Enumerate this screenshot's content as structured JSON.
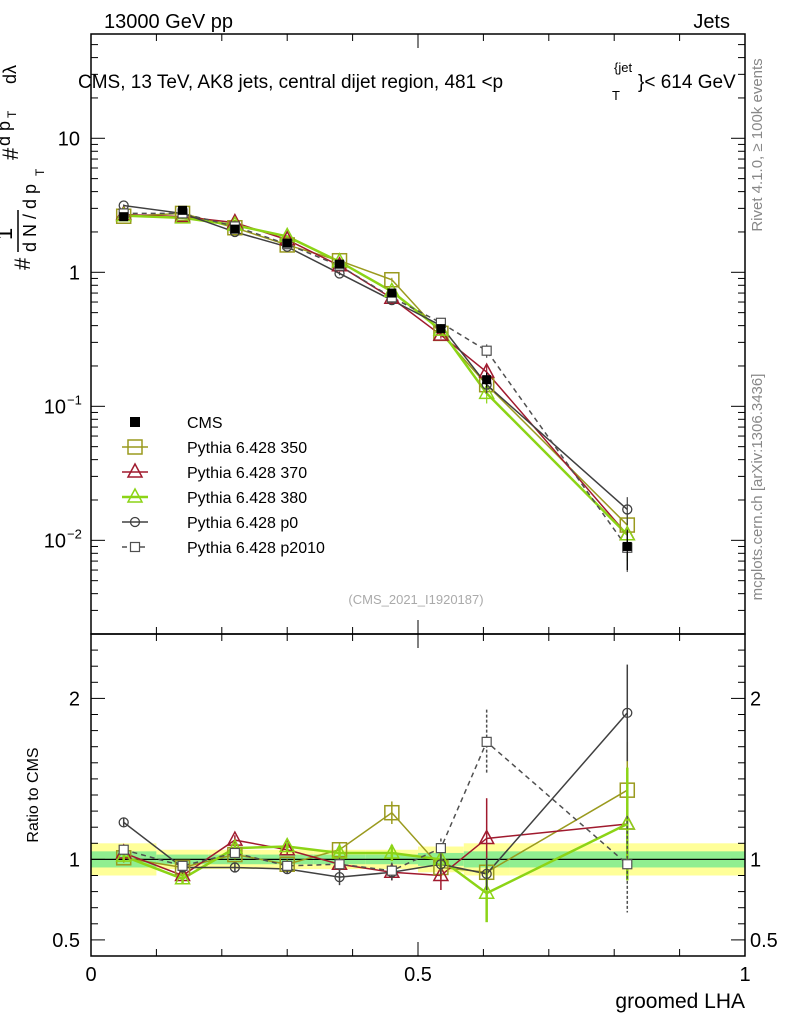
{
  "header": {
    "left": "13000 GeV pp",
    "right": "Jets"
  },
  "side": {
    "rivet": "Rivet 4.1.0, ≥ 100k events",
    "mcplots": "mcplots.cern.ch [arXiv:1306.3436]"
  },
  "chart_data": {
    "type": "line",
    "title": "CMS, 13 TeV, AK8 jets, central dijet region, 481 < p_T^{jet} < 614 GeV",
    "title_main": "CMS, 13 TeV, AK8 jets, central dijet region, 481 <p",
    "title_sub": "T",
    "title_sup": "{jet",
    "title_tail": "}< 614 GeV",
    "watermark": "(CMS_2021_I1920187)",
    "xlabel": "groomed LHA",
    "ylabel_top": "1/N dN/dp_T d²N/dp_T dλ",
    "ylabel_ratio": "Ratio to CMS",
    "xlim": [
      0,
      1
    ],
    "ylim_top": [
      0.002,
      60
    ],
    "ylim_ratio": [
      0.4,
      2.4
    ],
    "yscale_top": "log",
    "x_ticks": [
      {
        "v": 0,
        "label": "0"
      },
      {
        "v": 0.5,
        "label": "0.5"
      },
      {
        "v": 1,
        "label": "1"
      }
    ],
    "y_ticks_top": [
      {
        "v": 0.01,
        "base": "10",
        "exp": "−2"
      },
      {
        "v": 0.1,
        "base": "10",
        "exp": "−1"
      },
      {
        "v": 1,
        "base": "1",
        "exp": ""
      },
      {
        "v": 10,
        "base": "10",
        "exp": ""
      }
    ],
    "y_ticks_ratio": [
      {
        "v": 0.5,
        "label": "0.5"
      },
      {
        "v": 1,
        "label": "1"
      },
      {
        "v": 2,
        "label": "2"
      }
    ],
    "x_centers": [
      0.05,
      0.14,
      0.22,
      0.3,
      0.38,
      0.46,
      0.535,
      0.605,
      0.82
    ],
    "bin_edges": [
      0,
      0.1,
      0.18,
      0.26,
      0.34,
      0.42,
      0.5,
      0.57,
      0.64,
      1.0
    ],
    "data": {
      "name": "CMS",
      "values": [
        2.6,
        2.9,
        2.1,
        1.65,
        1.15,
        0.7,
        0.38,
        0.158,
        0.009
      ],
      "errors": [
        0.15,
        0.15,
        0.1,
        0.08,
        0.06,
        0.04,
        0.03,
        0.02,
        0.003
      ],
      "ratio_band_inner": [
        0.05,
        0.03,
        0.03,
        0.03,
        0.03,
        0.03,
        0.04,
        0.05,
        0.05
      ],
      "ratio_band_outer": [
        0.1,
        0.06,
        0.06,
        0.06,
        0.06,
        0.06,
        0.08,
        0.1,
        0.1
      ]
    },
    "series": [
      {
        "name": "Pythia 6.428 350",
        "color": "#9a9a1e",
        "marker": "square",
        "dash": "",
        "values": [
          2.62,
          2.75,
          2.15,
          1.6,
          1.22,
          0.88,
          0.35,
          0.145,
          0.013
        ],
        "errors": [
          0.05,
          0.05,
          0.04,
          0.03,
          0.03,
          0.03,
          0.02,
          0.015,
          0.003
        ],
        "ratio": [
          1.01,
          0.95,
          1.03,
          0.97,
          1.06,
          1.29,
          0.95,
          0.92,
          1.43
        ],
        "ratio_err": [
          0.03,
          0.03,
          0.03,
          0.03,
          0.04,
          0.07,
          0.07,
          0.1,
          0.3
        ]
      },
      {
        "name": "Pythia 6.428 370",
        "color": "#a01a2e",
        "marker": "triangle",
        "dash": "",
        "values": [
          2.7,
          2.6,
          2.35,
          1.75,
          1.12,
          0.64,
          0.34,
          0.18,
          0.011
        ],
        "errors": [
          0.05,
          0.05,
          0.04,
          0.03,
          0.03,
          0.03,
          0.02,
          0.02,
          0.003
        ],
        "ratio": [
          1.04,
          0.9,
          1.12,
          1.06,
          0.97,
          0.92,
          0.9,
          1.13,
          1.22
        ],
        "ratio_err": [
          0.03,
          0.03,
          0.03,
          0.03,
          0.04,
          0.05,
          0.09,
          0.25,
          0.3
        ]
      },
      {
        "name": "Pythia 6.428 380",
        "color": "#8cd416",
        "marker": "triangle",
        "dash": "",
        "values": [
          2.65,
          2.55,
          2.25,
          1.85,
          1.2,
          0.72,
          0.37,
          0.125,
          0.011
        ],
        "errors": [
          0.05,
          0.05,
          0.04,
          0.03,
          0.03,
          0.03,
          0.02,
          0.02,
          0.004
        ],
        "ratio": [
          1.02,
          0.88,
          1.07,
          1.08,
          1.04,
          1.04,
          1.0,
          0.79,
          1.22
        ],
        "ratio_err": [
          0.03,
          0.03,
          0.03,
          0.03,
          0.04,
          0.05,
          0.07,
          0.18,
          0.35
        ]
      },
      {
        "name": "Pythia 6.428 p0",
        "color": "#404040",
        "marker": "circle",
        "dash": "",
        "values": [
          3.15,
          2.75,
          2.0,
          1.55,
          0.98,
          0.62,
          0.4,
          0.145,
          0.017
        ],
        "errors": [
          0.06,
          0.05,
          0.04,
          0.03,
          0.03,
          0.03,
          0.02,
          0.02,
          0.004
        ],
        "ratio": [
          1.23,
          0.95,
          0.95,
          0.94,
          0.89,
          0.92,
          0.97,
          0.91,
          1.91
        ],
        "ratio_err": [
          0.03,
          0.03,
          0.03,
          0.03,
          0.05,
          0.05,
          0.06,
          0.1,
          0.3
        ]
      },
      {
        "name": "Pythia 6.428 p2010",
        "color": "#505050",
        "marker": "opensquare",
        "dash": "5,4",
        "values": [
          2.75,
          2.75,
          2.2,
          1.62,
          1.12,
          0.65,
          0.42,
          0.26,
          0.0088
        ],
        "errors": [
          0.05,
          0.05,
          0.04,
          0.03,
          0.03,
          0.03,
          0.03,
          0.03,
          0.003
        ],
        "ratio": [
          1.06,
          0.96,
          1.04,
          0.96,
          0.97,
          0.93,
          1.07,
          1.73,
          0.97
        ],
        "ratio_err": [
          0.03,
          0.03,
          0.03,
          0.03,
          0.04,
          0.05,
          0.06,
          0.2,
          0.3
        ]
      }
    ],
    "legend": {
      "placement": "middle-left"
    }
  }
}
